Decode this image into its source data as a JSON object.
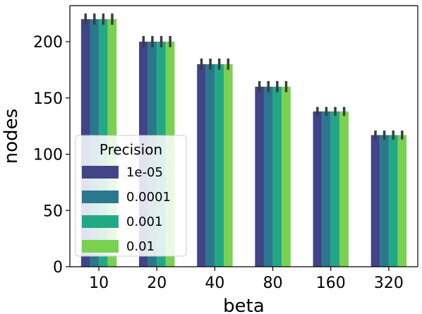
{
  "chart_data": {
    "type": "bar",
    "title": "",
    "xlabel": "beta",
    "ylabel": "nodes",
    "categories": [
      "10",
      "20",
      "40",
      "80",
      "160",
      "320"
    ],
    "ylim": [
      0,
      232
    ],
    "yticks": [
      0,
      50,
      100,
      150,
      200
    ],
    "grid": false,
    "legend": {
      "title": "Precision",
      "placement": "center-left"
    },
    "series": [
      {
        "name": "1e-05",
        "color": "#414487",
        "values": [
          220,
          200,
          180,
          160,
          138,
          117
        ],
        "err": [
          5,
          5,
          5,
          5,
          4,
          4
        ]
      },
      {
        "name": "0.0001",
        "color": "#2a788e",
        "values": [
          220,
          200,
          180,
          160,
          138,
          117
        ],
        "err": [
          5,
          5,
          5,
          5,
          4,
          4
        ]
      },
      {
        "name": "0.001",
        "color": "#22a884",
        "values": [
          220,
          200,
          180,
          160,
          138,
          117
        ],
        "err": [
          5,
          5,
          5,
          5,
          4,
          4
        ]
      },
      {
        "name": "0.01",
        "color": "#7ad151",
        "values": [
          220,
          200,
          180,
          160,
          138,
          117
        ],
        "err": [
          5,
          5,
          5,
          5,
          4,
          4
        ]
      }
    ],
    "errorbar_color": "#3d3d3d"
  }
}
